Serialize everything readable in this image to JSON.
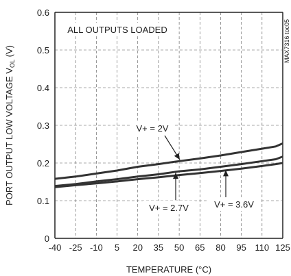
{
  "chart_data": {
    "type": "line",
    "xlabel": "TEMPERATURE (°C)",
    "ylabel_main": "PORT OUTPUT LOW VOLTAGE V",
    "ylabel_sub": "OL",
    "ylabel_tail": " (V)",
    "figure_id": "MAX7316 toc05",
    "xlim": [
      -40,
      125
    ],
    "ylim": [
      0,
      0.6
    ],
    "x_ticks": [
      -40,
      -25,
      -10,
      5,
      20,
      35,
      50,
      65,
      80,
      95,
      110,
      125
    ],
    "y_ticks": [
      0,
      0.1,
      0.2,
      0.3,
      0.4,
      0.5,
      0.6
    ],
    "y_tick_labels": [
      "0",
      "0.1",
      "0.2",
      "0.3",
      "0.4",
      "0.5",
      "0.6"
    ],
    "grid": true,
    "annotations": {
      "box_label": "ALL OUTPUTS LOADED",
      "v2": "V+ = 2V",
      "v27": "V+ = 2.7V",
      "v36": "V+ = 3.6V"
    },
    "series": [
      {
        "name": "V+ = 2V",
        "x": [
          -40,
          -25,
          -10,
          5,
          20,
          35,
          50,
          65,
          80,
          95,
          110,
          120,
          125
        ],
        "y": [
          0.158,
          0.164,
          0.172,
          0.18,
          0.19,
          0.197,
          0.205,
          0.212,
          0.22,
          0.229,
          0.238,
          0.244,
          0.252
        ]
      },
      {
        "name": "V+ = 2.7V",
        "x": [
          -40,
          -25,
          -10,
          5,
          20,
          35,
          50,
          65,
          80,
          95,
          110,
          120,
          125
        ],
        "y": [
          0.139,
          0.144,
          0.151,
          0.157,
          0.164,
          0.17,
          0.178,
          0.183,
          0.19,
          0.197,
          0.205,
          0.21,
          0.217
        ]
      },
      {
        "name": "V+ = 3.6V",
        "x": [
          -40,
          -25,
          -10,
          5,
          20,
          35,
          50,
          65,
          80,
          95,
          110,
          120,
          125
        ],
        "y": [
          0.136,
          0.141,
          0.146,
          0.151,
          0.157,
          0.162,
          0.168,
          0.173,
          0.179,
          0.185,
          0.192,
          0.197,
          0.2
        ]
      }
    ]
  }
}
